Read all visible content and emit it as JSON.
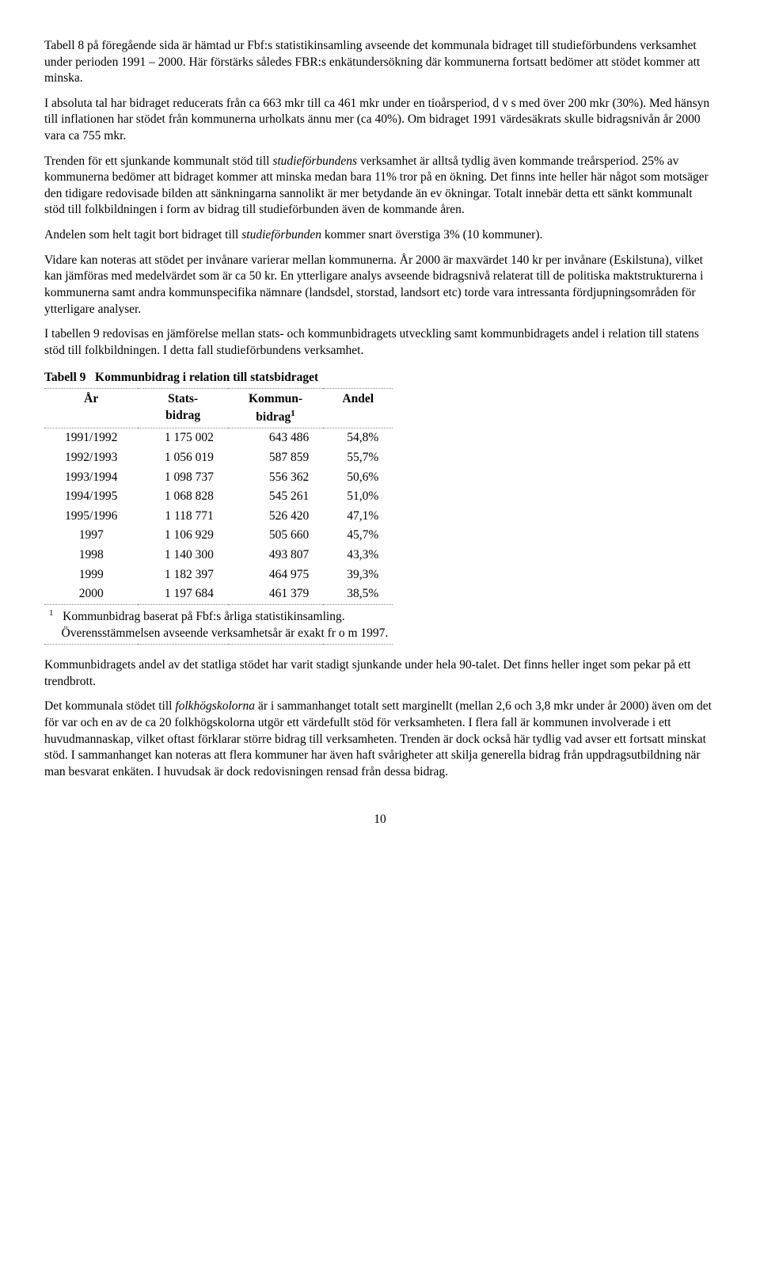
{
  "paragraphs": {
    "p1": "Tabell 8 på föregående sida är hämtad ur Fbf:s statistikinsamling avseende det kommunala bidraget till studieförbundens verksamhet under perioden 1991 – 2000. Här förstärks således FBR:s enkätundersökning där kommunerna fortsatt bedömer att stödet kommer att minska.",
    "p2": "I absoluta tal har bidraget reducerats från ca 663 mkr till ca 461 mkr under en tioårsperiod, d v s med över 200 mkr (30%). Med hänsyn till inflationen har stödet från kommunerna urholkats ännu mer (ca 40%). Om bidraget 1991 värdesäkrats skulle bidragsnivån år 2000 vara ca 755 mkr.",
    "p3a": "Trenden för ett sjunkande kommunalt stöd till ",
    "p3i": "studieförbundens",
    "p3b": " verksamhet är alltså tydlig även kommande treårsperiod. 25% av kommunerna bedömer att bidraget kommer att minska medan bara 11% tror på en ökning. Det finns inte heller här något som motsäger den tidigare redovisade bilden att sänkningarna sannolikt är mer betydande än ev ökningar. Totalt innebär detta ett sänkt kommunalt stöd till folkbildningen i form av bidrag till studieförbunden även de kommande åren.",
    "p4a": "Andelen som helt tagit bort bidraget till ",
    "p4i": "studieförbunden",
    "p4b": " kommer snart överstiga 3% (10 kommuner).",
    "p5": "Vidare kan noteras att stödet per invånare varierar mellan kommunerna. År 2000 är maxvärdet 140 kr per invånare (Eskilstuna), vilket kan jämföras med medelvärdet som är ca 50 kr. En ytterligare analys avseende bidragsnivå relaterat till de politiska maktstrukturerna i kommunerna samt andra kommunspecifika nämnare (landsdel, storstad, landsort etc) torde vara intressanta fördjupningsområden för ytterligare analyser.",
    "p6": "I tabellen 9 redovisas en jämförelse mellan stats- och kommunbidragets utveckling samt kommunbidragets andel i relation till statens stöd till folkbildningen. I detta fall studieförbundens verksamhet.",
    "p7": "Kommunbidragets andel av det statliga stödet har varit stadigt sjunkande under hela 90-talet. Det finns heller inget som pekar på ett trendbrott.",
    "p8a": "Det kommunala stödet till ",
    "p8i": "folkhögskolorna",
    "p8b": " är i sammanhanget totalt sett marginellt (mellan 2,6 och 3,8 mkr under år 2000) även om det för var och en av de ca 20 folkhögskolorna utgör ett värdefullt stöd för verksamheten. I flera fall är kommunen involverade i ett huvudmannaskap, vilket oftast förklarar större bidrag till verksamheten. Trenden är dock också här tydlig vad avser ett fortsatt minskat stöd. I sammanhanget kan noteras att flera kommuner har även haft svårigheter att skilja generella bidrag från uppdragsutbildning när man besvarat enkäten. I huvudsak är dock redovisningen rensad från dessa bidrag."
  },
  "table": {
    "caption_label": "Tabell 9",
    "caption_text": "Kommunbidrag i relation till statsbidraget",
    "headers": {
      "year": "År",
      "stats_l1": "Stats-",
      "stats_l2": "bidrag",
      "kommun_l1": "Kommun-",
      "kommun_l2": "bidrag",
      "kommun_sup": "1",
      "andel": "Andel"
    },
    "rows": [
      {
        "year": "1991/1992",
        "stats": "1 175 002",
        "kommun": "643 486",
        "andel": "54,8%"
      },
      {
        "year": "1992/1993",
        "stats": "1 056 019",
        "kommun": "587 859",
        "andel": "55,7%"
      },
      {
        "year": "1993/1994",
        "stats": "1 098 737",
        "kommun": "556 362",
        "andel": "50,6%"
      },
      {
        "year": "1994/1995",
        "stats": "1 068 828",
        "kommun": "545 261",
        "andel": "51,0%"
      },
      {
        "year": "1995/1996",
        "stats": "1 118 771",
        "kommun": "526 420",
        "andel": "47,1%"
      },
      {
        "year": "1997",
        "stats": "1 106 929",
        "kommun": "505 660",
        "andel": "45,7%"
      },
      {
        "year": "1998",
        "stats": "1 140 300",
        "kommun": "493 807",
        "andel": "43,3%"
      },
      {
        "year": "1999",
        "stats": "1 182 397",
        "kommun": "464 975",
        "andel": "39,3%"
      },
      {
        "year": "2000",
        "stats": "1 197 684",
        "kommun": "461 379",
        "andel": "38,5%"
      }
    ],
    "footnote_marker": "1",
    "footnote_l1": "Kommunbidrag baserat på Fbf:s årliga statistikinsamling.",
    "footnote_l2": "Överensstämmelsen avseende verksamhetsår är exakt fr o m 1997."
  },
  "page_number": "10"
}
